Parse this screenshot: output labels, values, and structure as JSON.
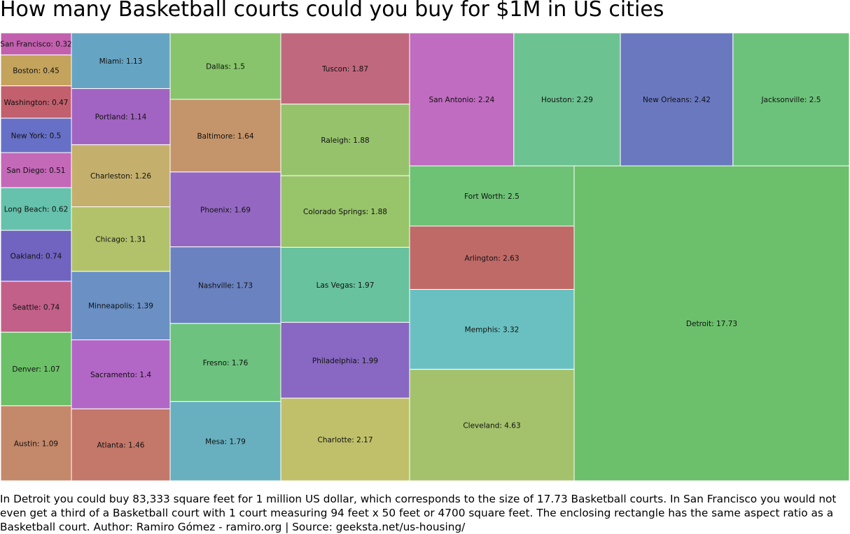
{
  "chart_data": {
    "type": "treemap",
    "title": "How many Basketball courts could you buy for $1M in US cities",
    "label_separator": ": ",
    "items": [
      {
        "name": "San Francisco",
        "value": 0.32,
        "color": "#c260ae"
      },
      {
        "name": "Boston",
        "value": 0.45,
        "color": "#c4a35c"
      },
      {
        "name": "Washington",
        "value": 0.47,
        "color": "#c2606e"
      },
      {
        "name": "New York",
        "value": 0.5,
        "color": "#6670c6"
      },
      {
        "name": "San Diego",
        "value": 0.51,
        "color": "#c468b8"
      },
      {
        "name": "Long Beach",
        "value": 0.62,
        "color": "#66c2ac"
      },
      {
        "name": "Oakland",
        "value": 0.74,
        "color": "#7064c0"
      },
      {
        "name": "Seattle",
        "value": 0.74,
        "color": "#c2608a"
      },
      {
        "name": "Denver",
        "value": 1.07,
        "color": "#6cc068"
      },
      {
        "name": "Austin",
        "value": 1.09,
        "color": "#c4886a"
      },
      {
        "name": "Miami",
        "value": 1.13,
        "color": "#66a4c4"
      },
      {
        "name": "Portland",
        "value": 1.14,
        "color": "#a264c2"
      },
      {
        "name": "Charleston",
        "value": 1.26,
        "color": "#c4b06c"
      },
      {
        "name": "Chicago",
        "value": 1.31,
        "color": "#b2c26a"
      },
      {
        "name": "Minneapolis",
        "value": 1.39,
        "color": "#6a90c4"
      },
      {
        "name": "Sacramento",
        "value": 1.4,
        "color": "#b266c6"
      },
      {
        "name": "Atlanta",
        "value": 1.46,
        "color": "#c4786a"
      },
      {
        "name": "Dallas",
        "value": 1.5,
        "color": "#88c46c"
      },
      {
        "name": "Baltimore",
        "value": 1.64,
        "color": "#c4946a"
      },
      {
        "name": "Phoenix",
        "value": 1.69,
        "color": "#9468c2"
      },
      {
        "name": "Nashville",
        "value": 1.73,
        "color": "#6a82c0"
      },
      {
        "name": "Fresno",
        "value": 1.76,
        "color": "#6cc27e"
      },
      {
        "name": "Mesa",
        "value": 1.79,
        "color": "#68b0c0"
      },
      {
        "name": "Tuscon",
        "value": 1.87,
        "color": "#c0687e"
      },
      {
        "name": "Raleigh",
        "value": 1.88,
        "color": "#96c26c"
      },
      {
        "name": "Colorado Springs",
        "value": 1.88,
        "color": "#98c46a"
      },
      {
        "name": "Las Vegas",
        "value": 1.97,
        "color": "#68c29e"
      },
      {
        "name": "Philadelphia",
        "value": 1.99,
        "color": "#8868c2"
      },
      {
        "name": "Charlotte",
        "value": 2.17,
        "color": "#c0c06a"
      },
      {
        "name": "San Antonio",
        "value": 2.24,
        "color": "#c06cc0"
      },
      {
        "name": "Houston",
        "value": 2.29,
        "color": "#6cc290"
      },
      {
        "name": "New Orleans",
        "value": 2.42,
        "color": "#6a78c0"
      },
      {
        "name": "Jacksonville",
        "value": 2.5,
        "color": "#6cc27a"
      },
      {
        "name": "Fort Worth",
        "value": 2.5,
        "color": "#6ec276"
      },
      {
        "name": "Arlington",
        "value": 2.63,
        "color": "#c06a68"
      },
      {
        "name": "Memphis",
        "value": 3.32,
        "color": "#6ac0c0"
      },
      {
        "name": "Cleveland",
        "value": 4.63,
        "color": "#a4c26c"
      },
      {
        "name": "Detroit",
        "value": 17.73,
        "color": "#6cc06c"
      }
    ]
  },
  "caption": "In Detroit you could buy 83,333 square feet for 1 million US dollar, which corresponds to the size of 17.73 Basketball courts. In San Francisco you would not even get a third of a Basketball court with 1 court measuring 94 feet x 50 feet or 4700 square feet. The enclosing rectangle has the same aspect ratio as a Basketball court. Author: Ramiro Gómez - ramiro.org | Source: geeksta.net/us-housing/"
}
